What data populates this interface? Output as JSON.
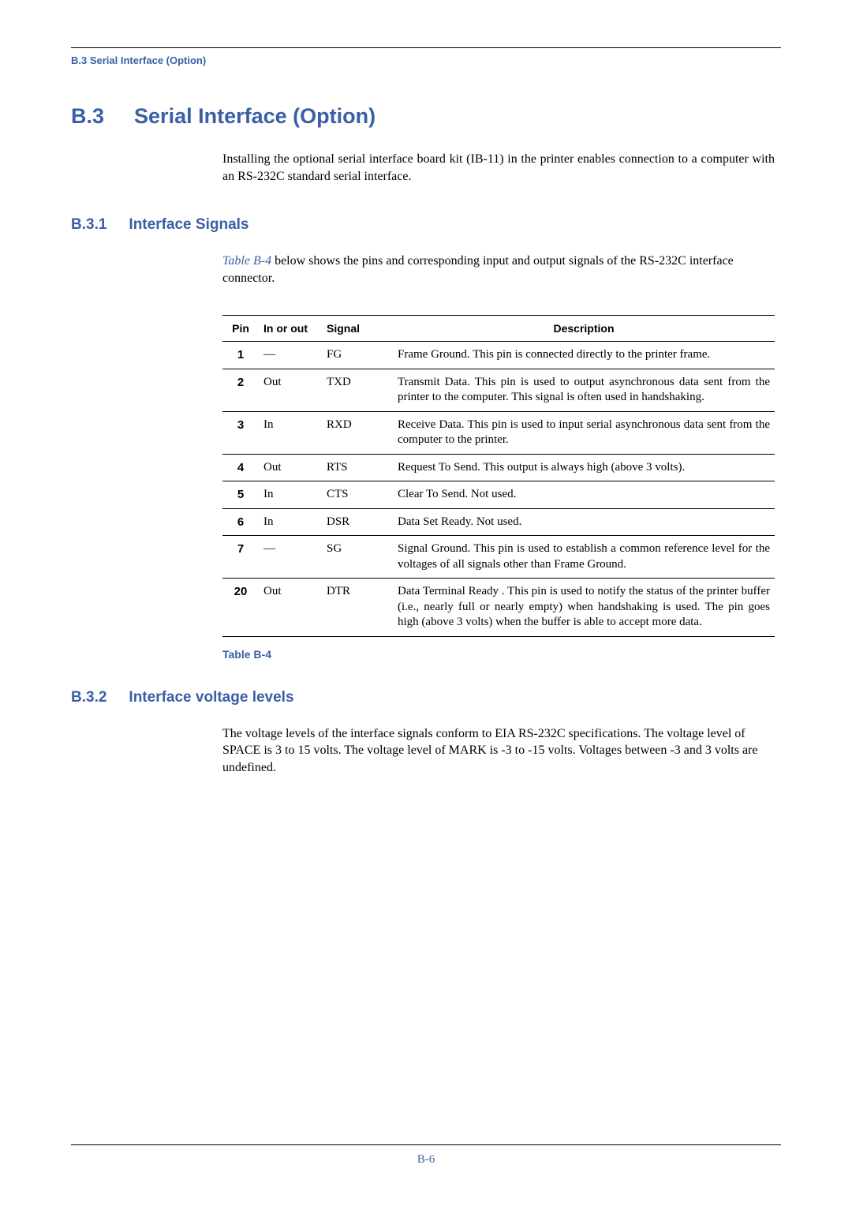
{
  "runningHead": "B.3 Serial Interface (Option)",
  "h1": {
    "num": "B.3",
    "title": "Serial Interface (Option)"
  },
  "intro": "Installing the optional serial interface board kit (IB-11) in the printer enables connection to a computer with an RS-232C standard serial interface.",
  "h2a": {
    "num": "B.3.1",
    "title": "Interface Signals"
  },
  "signalsPara": {
    "ref": "Table B-4",
    "rest": " below shows the pins and corresponding input and output signals of the RS-232C interface connector."
  },
  "table": {
    "headers": {
      "pin": "Pin",
      "io": "In or out",
      "signal": "Signal",
      "desc": "Description"
    },
    "rows": [
      {
        "pin": "1",
        "io": "—",
        "signal": "FG",
        "desc": "Frame Ground. This pin is connected directly to the printer frame."
      },
      {
        "pin": "2",
        "io": "Out",
        "signal": "TXD",
        "desc": "Transmit Data. This pin is used to output asynchronous data sent from the printer to the computer. This signal is often used in handshaking."
      },
      {
        "pin": "3",
        "io": "In",
        "signal": "RXD",
        "desc": "Receive Data. This pin is used to input serial asynchronous data sent from the computer to the printer."
      },
      {
        "pin": "4",
        "io": "Out",
        "signal": "RTS",
        "desc": "Request To Send. This output is always high (above 3 volts)."
      },
      {
        "pin": "5",
        "io": "In",
        "signal": "CTS",
        "desc": "Clear To Send. Not used."
      },
      {
        "pin": "6",
        "io": "In",
        "signal": "DSR",
        "desc": "Data Set Ready. Not used."
      },
      {
        "pin": "7",
        "io": "—",
        "signal": "SG",
        "desc": "Signal Ground. This pin is used to establish a common reference level for the voltages of all signals other than Frame Ground."
      },
      {
        "pin": "20",
        "io": "Out",
        "signal": "DTR",
        "desc": "Data Terminal Ready . This pin is used to notify the status of the printer buffer (i.e., nearly full or nearly empty) when handshaking is used. The pin goes high (above 3 volts) when the buffer is able to accept more data."
      }
    ],
    "caption": "Table B-4"
  },
  "h2b": {
    "num": "B.3.2",
    "title": "Interface voltage levels"
  },
  "voltagePara": "The voltage levels of the interface signals conform to EIA RS-232C specifications. The voltage level of SPACE is 3 to 15 volts. The voltage level of MARK is -3 to -15 volts. Voltages between -3 and 3 volts are undefined.",
  "pageNumber": "B-6"
}
